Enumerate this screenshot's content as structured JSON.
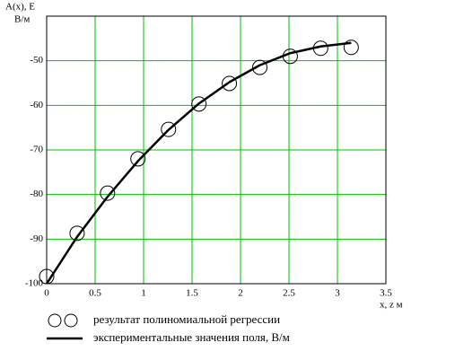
{
  "chart_data": {
    "type": "line",
    "ylabel": [
      "A(x), E",
      "В/м"
    ],
    "xlabel": "x, z   м",
    "x": [
      0,
      0.314,
      0.628,
      0.942,
      1.257,
      1.571,
      1.885,
      2.199,
      2.513,
      2.827,
      3.142
    ],
    "series": [
      {
        "name": "результат полиномиальной регрессии",
        "marker": "circle",
        "color": "#000000",
        "values": [
          -98.4,
          -88.7,
          -79.7,
          -72.0,
          -65.4,
          -59.7,
          -55.1,
          -51.5,
          -49.0,
          -47.2,
          -47.0
        ]
      },
      {
        "name": "экспериментальные значения поля, В/м",
        "marker": "line",
        "color": "#000000",
        "values": [
          -100,
          -89.5,
          -80.5,
          -72.5,
          -65.5,
          -59.6,
          -54.8,
          -51.0,
          -48.3,
          -46.8,
          -46.0
        ]
      }
    ],
    "xlim": [
      0,
      3.5
    ],
    "xticks": [
      0,
      0.5,
      1,
      1.5,
      2,
      2.5,
      3,
      3.5
    ],
    "ylim": [
      -100,
      -40
    ],
    "yticks": [
      -100,
      -90,
      -80,
      -70,
      -60,
      -50
    ],
    "grid": true,
    "grid_color": "#00c000"
  }
}
